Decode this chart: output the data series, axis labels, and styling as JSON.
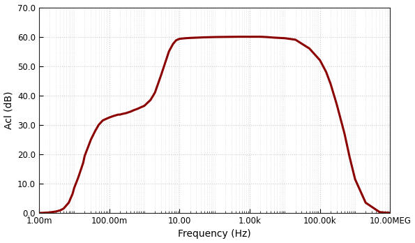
{
  "title": "",
  "xlabel": "Frequency (Hz)",
  "ylabel": "Acl (dB)",
  "line_color": "#8B0000",
  "line_width": 2.2,
  "background_color": "#ffffff",
  "fig_background_color": "#ffffff",
  "grid_color": "#cccccc",
  "xlim_log": [
    -3,
    7
  ],
  "ylim": [
    0.0,
    70.0
  ],
  "yticks": [
    0.0,
    10.0,
    20.0,
    30.0,
    40.0,
    50.0,
    60.0,
    70.0
  ],
  "xtick_labels": [
    "1.00m",
    "100.00m",
    "10.00",
    "1.00k",
    "100.00k",
    "10.00MEG"
  ],
  "xtick_positions": [
    0.001,
    0.1,
    10.0,
    1000.0,
    100000.0,
    10000000.0
  ],
  "curve_freq": [
    0.001,
    0.0013,
    0.0018,
    0.002,
    0.003,
    0.004,
    0.005,
    0.007,
    0.009,
    0.01,
    0.013,
    0.018,
    0.02,
    0.025,
    0.03,
    0.04,
    0.05,
    0.065,
    0.08,
    0.1,
    0.13,
    0.18,
    0.2,
    0.25,
    0.3,
    0.4,
    0.5,
    0.65,
    0.8,
    1.0,
    1.5,
    2.0,
    3.0,
    4.0,
    5.0,
    6.5,
    8.0,
    10.0,
    15.0,
    20.0,
    50.0,
    100.0,
    500.0,
    1000.0,
    2000.0,
    3000.0,
    5000.0,
    10000.0,
    20000.0,
    50000.0,
    100000.0,
    150000.0,
    200000.0,
    300000.0,
    500000.0,
    700000.0,
    1000000.0,
    2000000.0,
    5000000.0,
    10000000.0
  ],
  "curve_dB": [
    0.0,
    0.05,
    0.15,
    0.2,
    0.5,
    0.9,
    1.5,
    3.5,
    6.5,
    8.5,
    12.0,
    17.0,
    19.5,
    22.5,
    25.0,
    28.0,
    30.0,
    31.5,
    32.0,
    32.5,
    33.0,
    33.5,
    33.5,
    33.8,
    34.0,
    34.5,
    35.0,
    35.5,
    36.0,
    36.5,
    38.5,
    41.0,
    47.0,
    51.5,
    55.0,
    57.5,
    58.8,
    59.3,
    59.5,
    59.6,
    59.8,
    59.9,
    60.0,
    60.0,
    60.0,
    59.9,
    59.7,
    59.5,
    59.0,
    56.0,
    52.0,
    48.0,
    44.0,
    37.0,
    27.0,
    19.0,
    11.5,
    3.5,
    0.3,
    0.0
  ]
}
